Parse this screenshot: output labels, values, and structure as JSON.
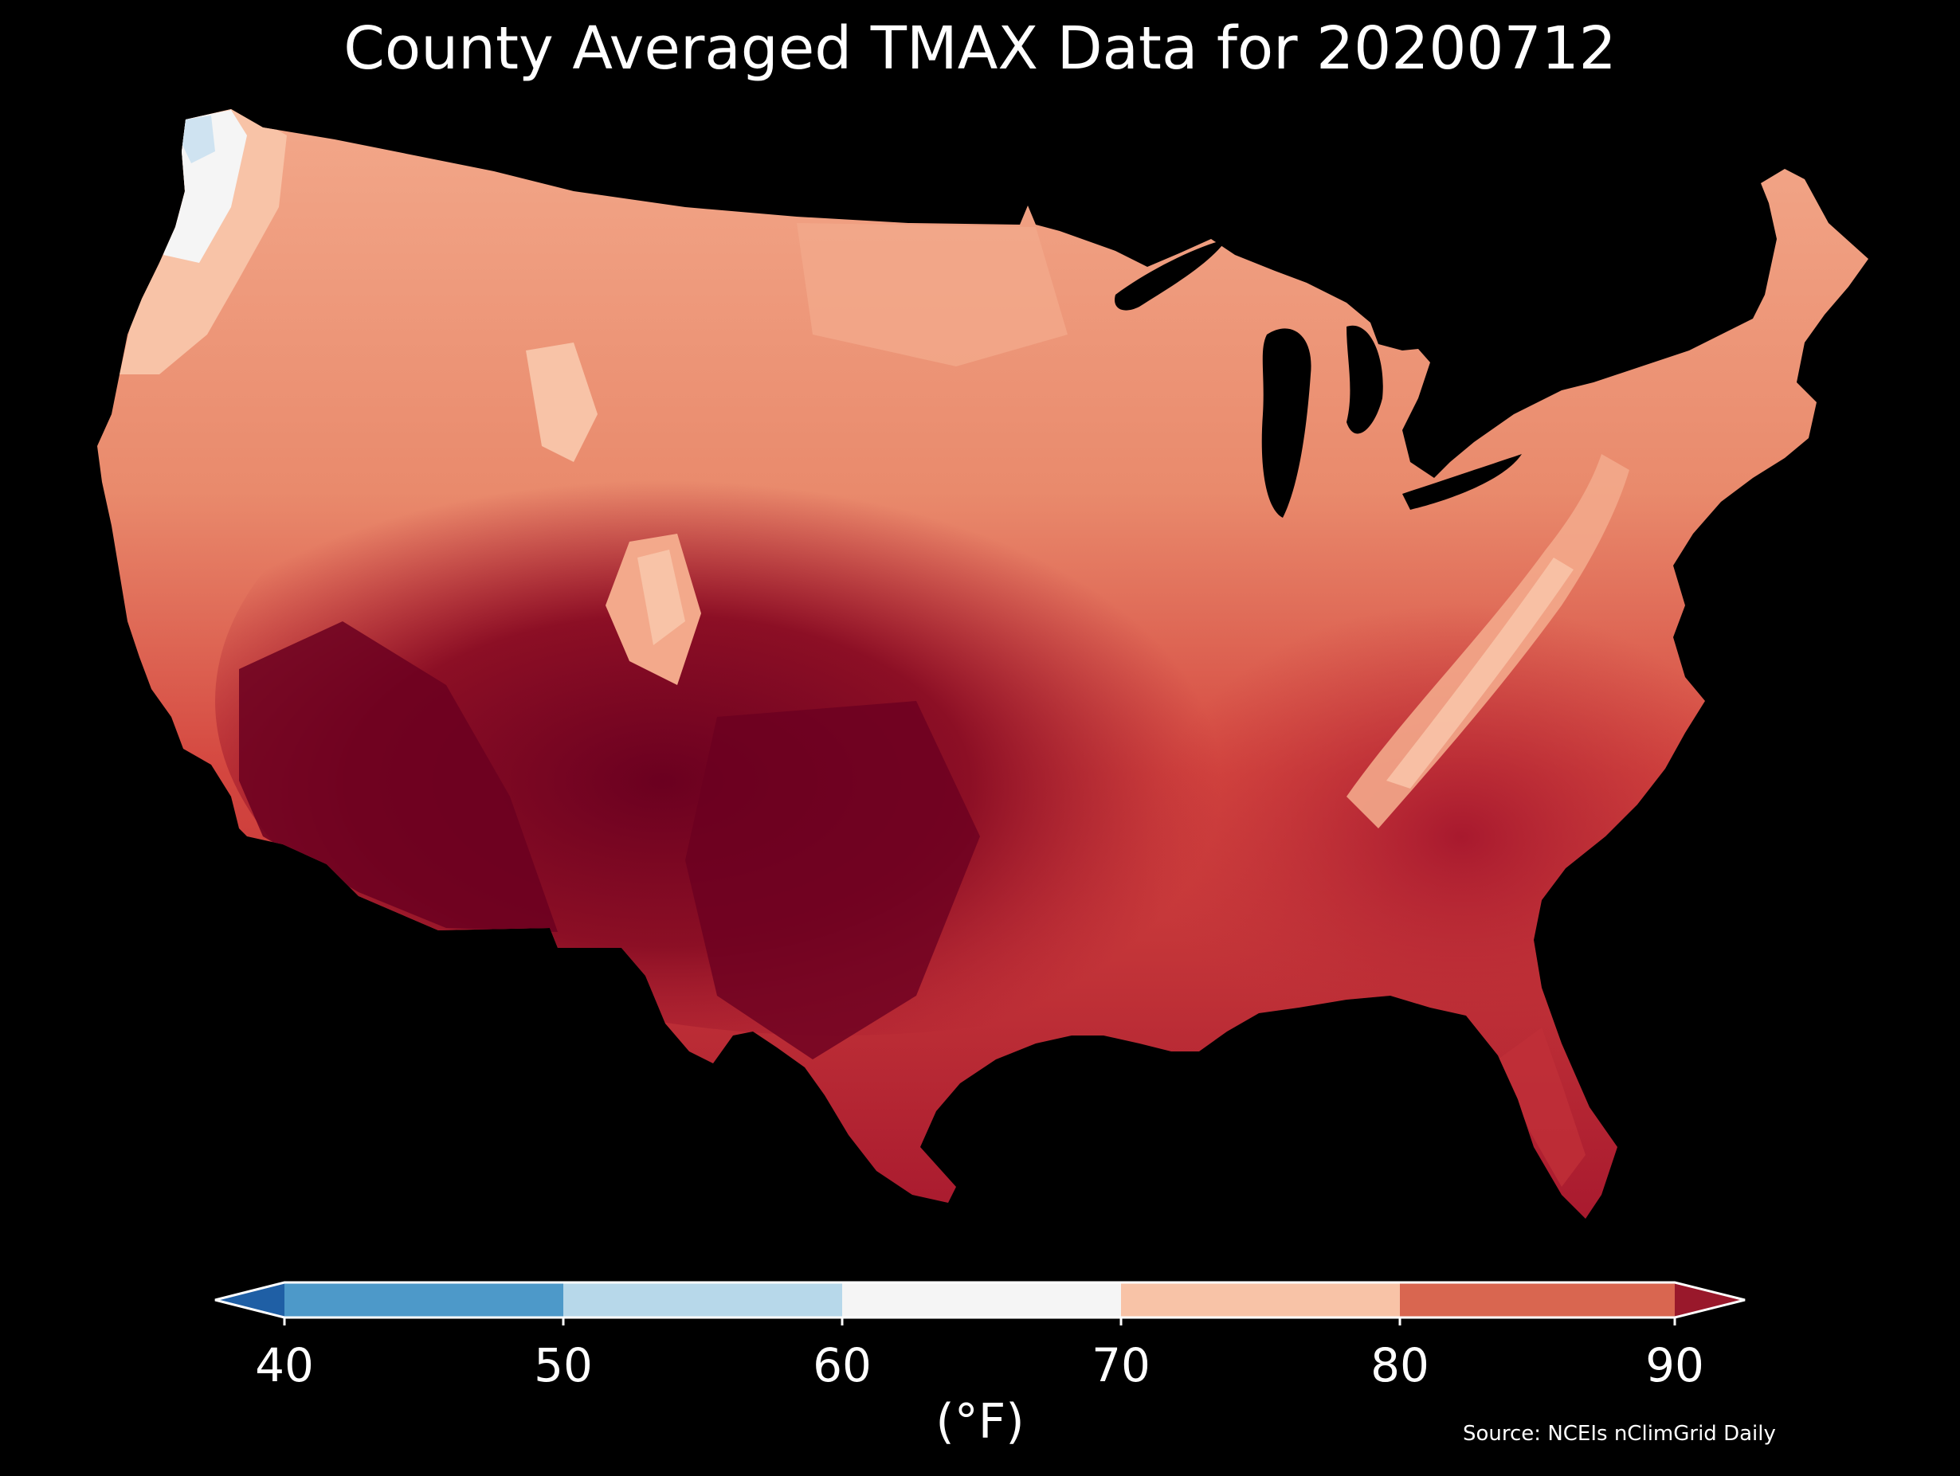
{
  "title": "County Averaged TMAX Data for 20200712",
  "colorbar": {
    "ticks": [
      "40",
      "50",
      "60",
      "70",
      "80",
      "90"
    ],
    "unit_label": "(°F)",
    "extend": "both",
    "bins": [
      {
        "range": "<40",
        "color": "#1f5fa5"
      },
      {
        "range": "40-50",
        "color": "#4d99c9"
      },
      {
        "range": "50-60",
        "color": "#b7d8ea"
      },
      {
        "range": "60-70",
        "color": "#f5f5f5"
      },
      {
        "range": "70-80",
        "color": "#f8c3a7"
      },
      {
        "range": "80-90",
        "color": "#d96650"
      },
      {
        "range": ">90",
        "color": "#99182b"
      }
    ]
  },
  "map_colors": {
    "background": "#000000",
    "hottest": "#6b0020",
    "hot": "#a8192e",
    "warm": "#d4463f",
    "mild": "#e98a6c",
    "cool": "#f8c3a7",
    "cooler": "#f5f5f5",
    "coolest": "#cfe3f1"
  },
  "source": "Source: NCEIs nClimGrid Daily"
}
